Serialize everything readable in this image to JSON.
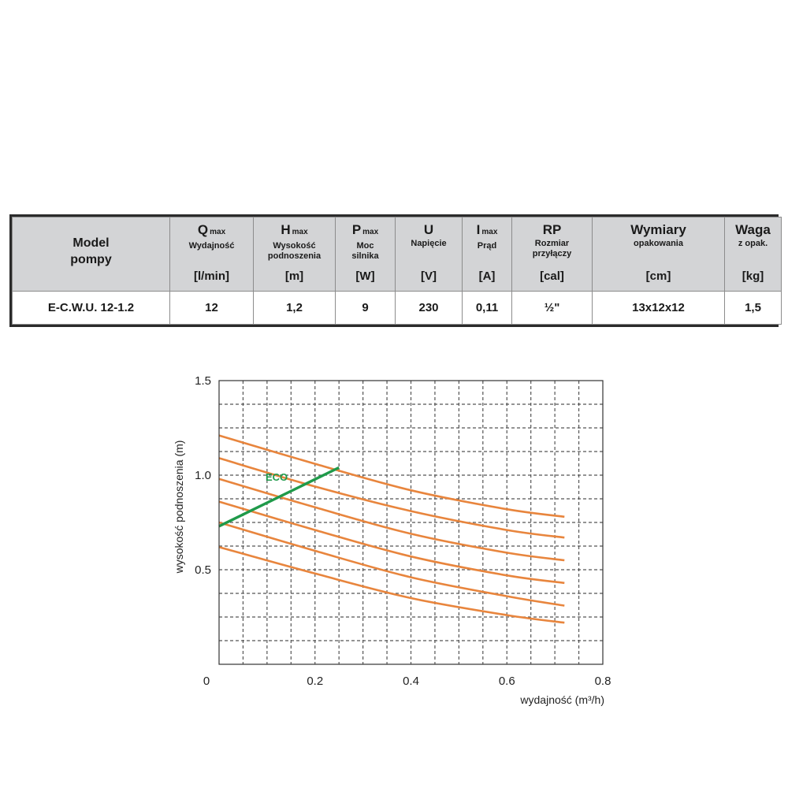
{
  "table": {
    "headers": [
      {
        "sym": "",
        "sub": "",
        "desc": "",
        "unit": "",
        "model": "Model\npompy"
      },
      {
        "sym": "Q",
        "sub": "max",
        "desc": "Wydajność",
        "unit": "[l/min]"
      },
      {
        "sym": "H",
        "sub": "max",
        "desc": "Wysokość\npodnoszenia",
        "unit": "[m]"
      },
      {
        "sym": "P",
        "sub": "max",
        "desc": "Moc\nsilnika",
        "unit": "[W]"
      },
      {
        "sym": "U",
        "sub": "",
        "desc": "Napięcie",
        "unit": "[V]"
      },
      {
        "sym": "I",
        "sub": "max",
        "desc": "Prąd",
        "unit": "[A]"
      },
      {
        "sym": "RP",
        "sub": "",
        "desc": "Rozmiar\nprzyłączy",
        "unit": "[cal]"
      },
      {
        "sym": "Wymiary",
        "sub": "",
        "desc": "opakowania",
        "unit": "[cm]"
      },
      {
        "sym": "Waga",
        "sub": "",
        "desc": "z opak.",
        "unit": "[kg]"
      }
    ],
    "row": [
      "E-C.W.U. 12-1.2",
      "12",
      "1,2",
      "9",
      "230",
      "0,11",
      "½\"",
      "13x12x12",
      "1,5"
    ]
  },
  "chart_data": {
    "type": "line",
    "xlabel": "wydajność (m³/h)",
    "ylabel": "wysokość podnoszenia (m)",
    "xlim": [
      0,
      0.8
    ],
    "ylim": [
      0,
      1.5
    ],
    "x_ticks": [
      "0",
      "0.2",
      "0.4",
      "0.6",
      "0.8"
    ],
    "y_ticks": [
      "0.5",
      "1.0",
      "1.5"
    ],
    "grid": true,
    "series_color": "#e8853d",
    "eco_color": "#1f9a4a",
    "series": [
      {
        "x": [
          0,
          0.2,
          0.4,
          0.6,
          0.72
        ],
        "y": [
          1.21,
          1.06,
          0.92,
          0.82,
          0.78
        ]
      },
      {
        "x": [
          0,
          0.2,
          0.4,
          0.6,
          0.72
        ],
        "y": [
          1.09,
          0.94,
          0.81,
          0.71,
          0.67
        ]
      },
      {
        "x": [
          0,
          0.2,
          0.4,
          0.6,
          0.72
        ],
        "y": [
          0.98,
          0.83,
          0.69,
          0.59,
          0.55
        ]
      },
      {
        "x": [
          0,
          0.2,
          0.4,
          0.6,
          0.72
        ],
        "y": [
          0.86,
          0.71,
          0.57,
          0.47,
          0.43
        ]
      },
      {
        "x": [
          0,
          0.2,
          0.4,
          0.6,
          0.72
        ],
        "y": [
          0.75,
          0.6,
          0.46,
          0.36,
          0.31
        ]
      },
      {
        "x": [
          0,
          0.2,
          0.4,
          0.6,
          0.72
        ],
        "y": [
          0.62,
          0.48,
          0.35,
          0.26,
          0.22
        ]
      }
    ],
    "eco": {
      "name": "ECO",
      "x": [
        0,
        0.25
      ],
      "y": [
        0.73,
        1.04
      ]
    }
  }
}
